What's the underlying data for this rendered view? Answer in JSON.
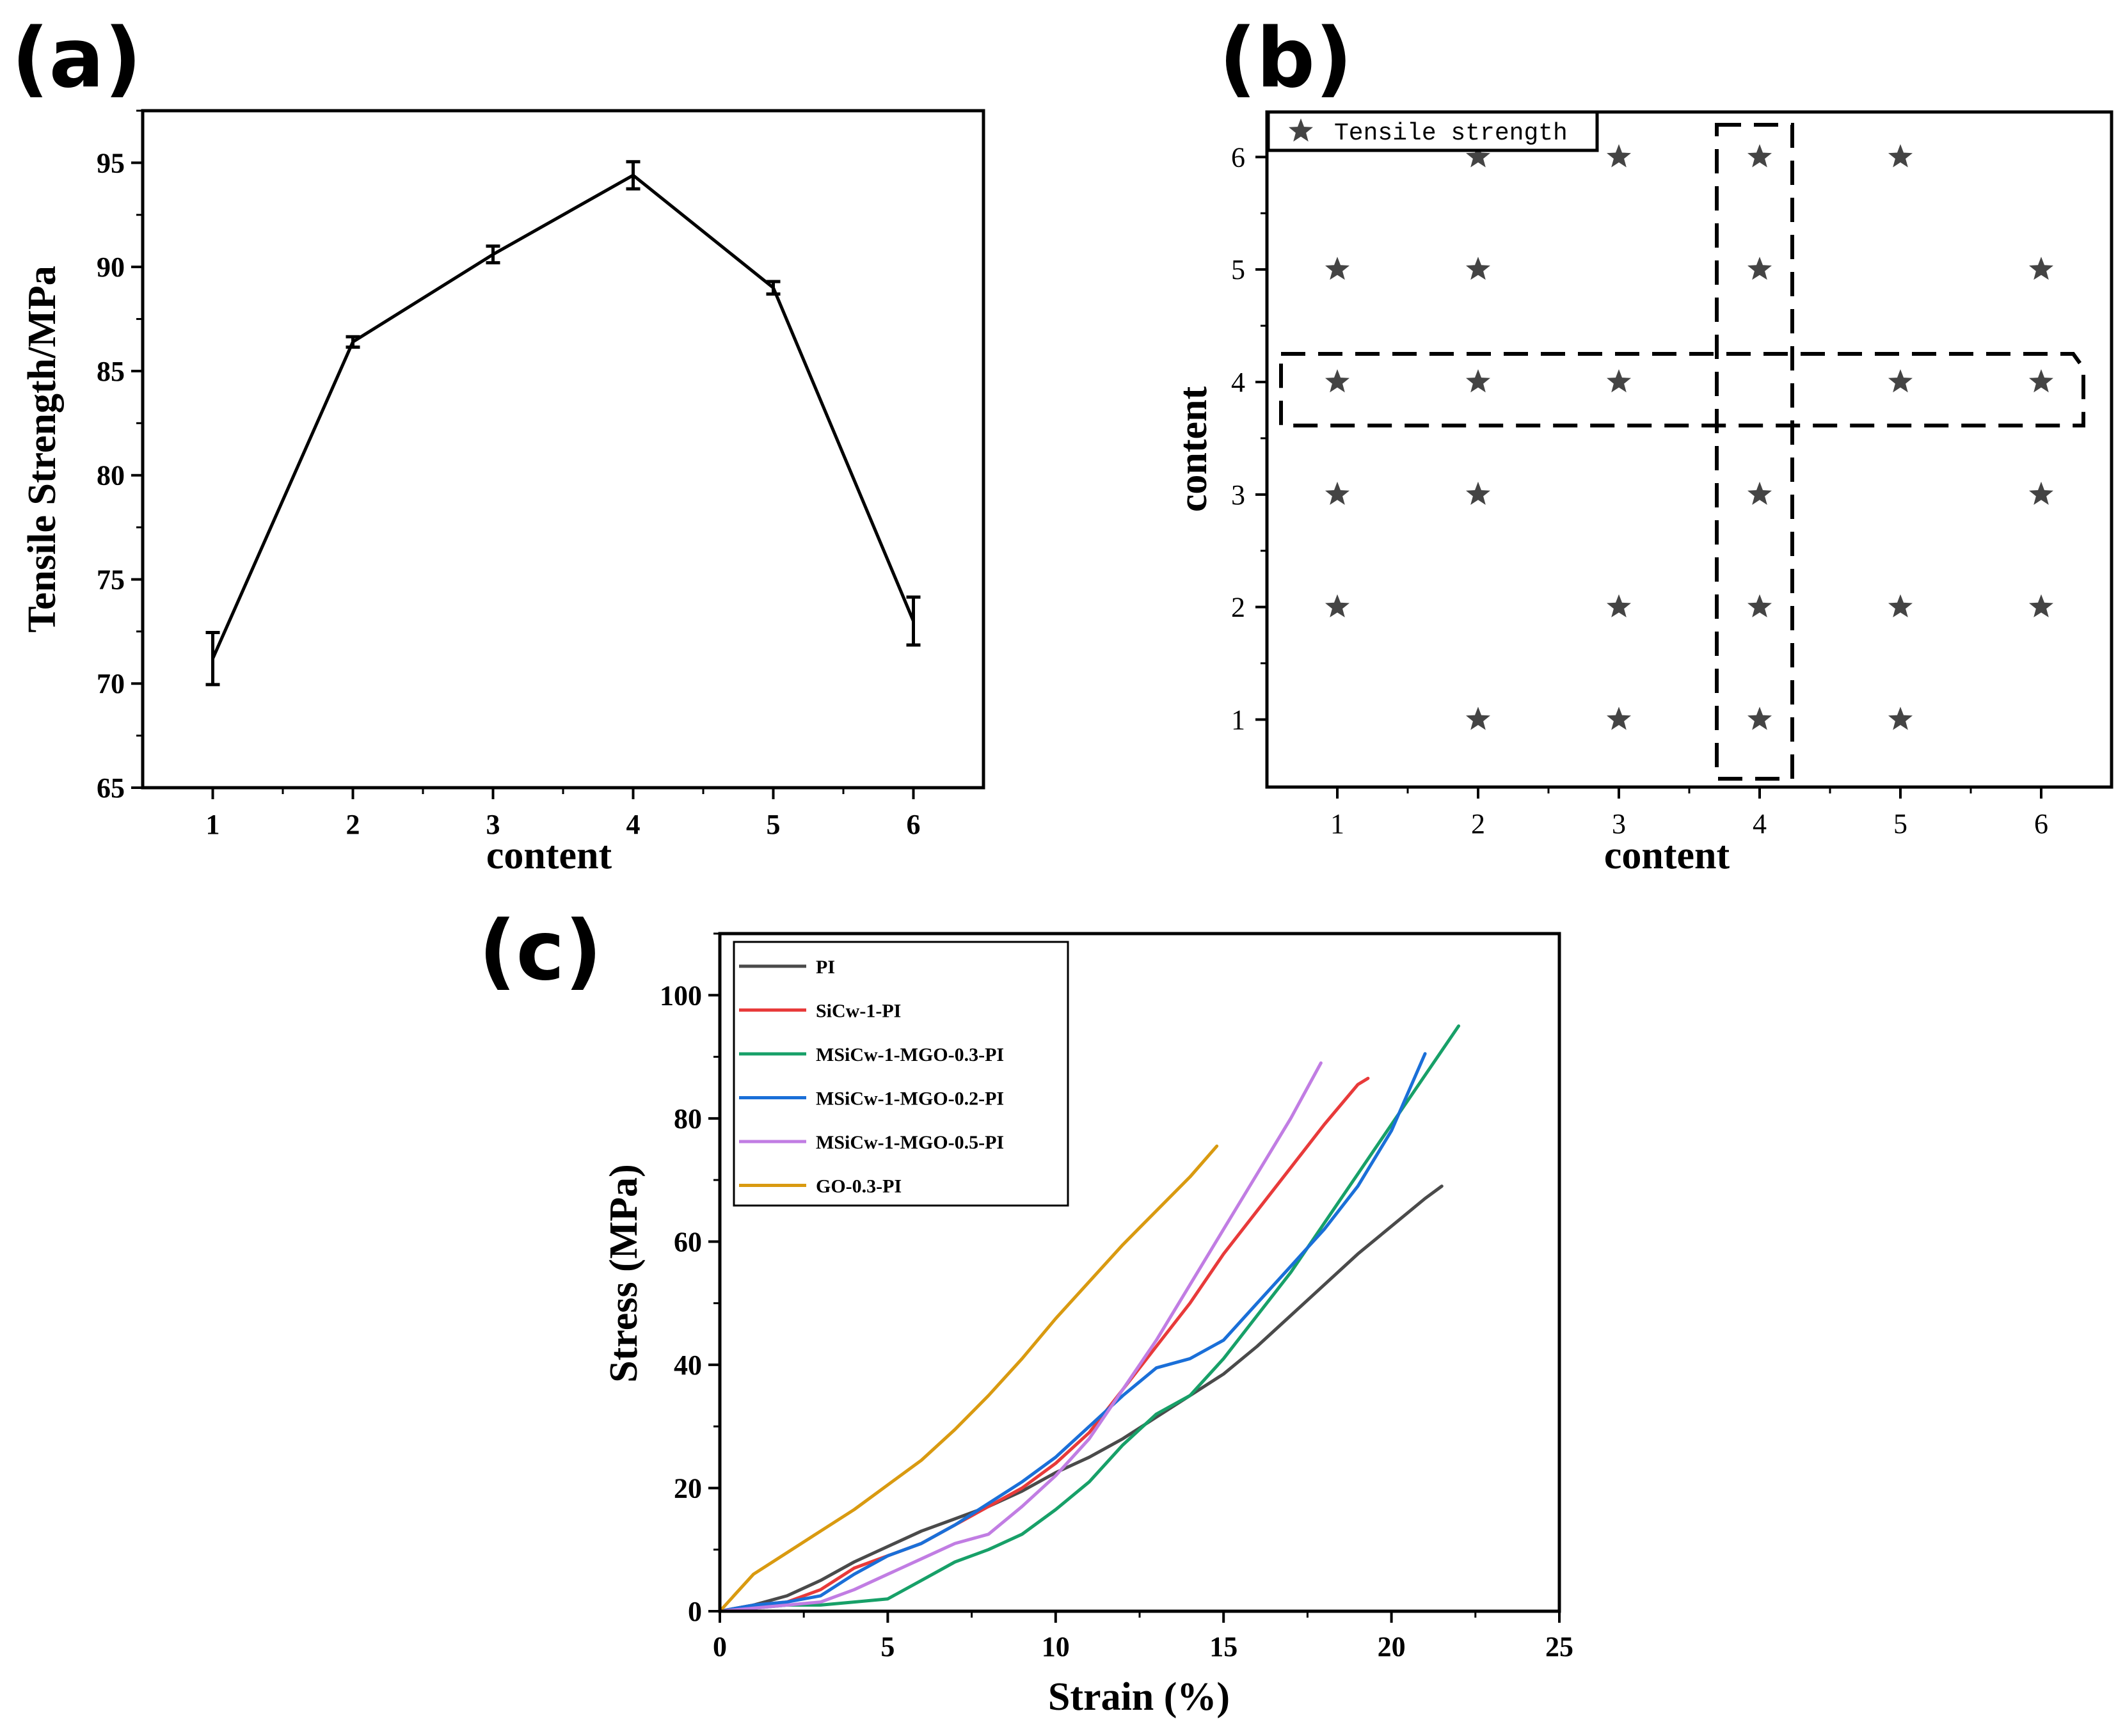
{
  "panels": {
    "a": {
      "label": "(a)",
      "chart_data": {
        "type": "line",
        "xlabel": "content",
        "ylabel": "Tensile Strength/MPa",
        "xticks": [
          "1",
          "2",
          "3",
          "4",
          "5",
          "6"
        ],
        "yticks": [
          "65",
          "70",
          "75",
          "80",
          "85",
          "90",
          "95"
        ],
        "xlim": [
          0.5,
          6.5
        ],
        "ylim": [
          65,
          97.5
        ],
        "x": [
          1,
          2,
          3,
          4,
          5,
          6
        ],
        "values": [
          71.2,
          86.4,
          90.6,
          94.4,
          89.0,
          73.0
        ],
        "errors": [
          1.25,
          0.25,
          0.4,
          0.65,
          0.3,
          1.15
        ]
      }
    },
    "b": {
      "label": "(b)",
      "chart_data": {
        "type": "scatter",
        "xlabel": "content",
        "ylabel": "content",
        "xticks": [
          "1",
          "2",
          "3",
          "4",
          "5",
          "6"
        ],
        "yticks": [
          "1",
          "2",
          "3",
          "4",
          "5",
          "6"
        ],
        "xlim": [
          0.5,
          6.5
        ],
        "ylim": [
          0.4,
          6.4
        ],
        "legend": "Tensile strength",
        "points": [
          [
            2,
            6
          ],
          [
            3,
            6
          ],
          [
            4,
            6
          ],
          [
            5,
            6
          ],
          [
            1,
            5
          ],
          [
            2,
            5
          ],
          [
            4,
            5
          ],
          [
            6,
            5
          ],
          [
            1,
            4
          ],
          [
            2,
            4
          ],
          [
            3,
            4
          ],
          [
            5,
            4
          ],
          [
            6,
            4
          ],
          [
            1,
            3
          ],
          [
            2,
            3
          ],
          [
            4,
            3
          ],
          [
            6,
            3
          ],
          [
            1,
            2
          ],
          [
            3,
            2
          ],
          [
            4,
            2
          ],
          [
            5,
            2
          ],
          [
            6,
            2
          ],
          [
            2,
            1
          ],
          [
            3,
            1
          ],
          [
            4,
            1
          ],
          [
            5,
            1
          ]
        ]
      }
    },
    "c": {
      "label": "(c)",
      "chart_data": {
        "type": "line",
        "xlabel": "Strain (%)",
        "ylabel": "Stress (MPa)",
        "xticks": [
          "0",
          "5",
          "10",
          "15",
          "20",
          "25"
        ],
        "yticks": [
          "0",
          "20",
          "40",
          "60",
          "80",
          "100"
        ],
        "xlim": [
          0,
          25
        ],
        "ylim": [
          0,
          110
        ],
        "series": [
          {
            "name": "PI",
            "color": "#4a4a4a",
            "x": [
              0,
              1,
              2,
              3,
              4,
              5,
              6,
              7,
              8,
              9,
              10,
              11,
              12,
              13,
              14,
              15,
              16,
              17,
              18,
              19,
              20,
              21,
              21.5
            ],
            "y": [
              0,
              1,
              2.5,
              5,
              8,
              10.5,
              13,
              15,
              17,
              19.5,
              22.5,
              25,
              28,
              31.5,
              35,
              38.5,
              43,
              48,
              53,
              58,
              62.5,
              67,
              69
            ]
          },
          {
            "name": "SiCw-1-PI",
            "color": "#e83a3a",
            "x": [
              0,
              1,
              2,
              3,
              4,
              5,
              6,
              7,
              8,
              9,
              10,
              11,
              12,
              13,
              14,
              15,
              16,
              17,
              18,
              19,
              19.3
            ],
            "y": [
              0,
              1,
              1.5,
              3.5,
              7,
              9,
              11,
              14,
              17,
              20,
              24,
              29,
              36,
              43,
              50,
              58,
              65,
              72,
              79,
              85.5,
              86.5
            ]
          },
          {
            "name": "MSiCw-1-MGO-0.3-PI",
            "color": "#17a068",
            "x": [
              0,
              1,
              2,
              3,
              4,
              5,
              6,
              7,
              8,
              9,
              10,
              11,
              12,
              13,
              14,
              15,
              16,
              17,
              18,
              19,
              20,
              21,
              22
            ],
            "y": [
              0,
              0.5,
              1,
              1,
              1.5,
              2,
              5,
              8,
              10,
              12.5,
              16.5,
              21,
              27,
              32,
              35,
              41,
              48,
              55,
              63,
              71,
              79,
              87,
              95
            ]
          },
          {
            "name": "MSiCw-1-MGO-0.2-PI",
            "color": "#1a6fd8",
            "x": [
              0,
              1,
              2,
              3,
              4,
              5,
              6,
              7,
              8,
              9,
              10,
              11,
              12,
              13,
              14,
              15,
              16,
              17,
              18,
              19,
              20,
              21
            ],
            "y": [
              0,
              1,
              1.5,
              2.5,
              6,
              9,
              11,
              14,
              17.5,
              21,
              25,
              30,
              35,
              39.5,
              41,
              44,
              50,
              56,
              62,
              69,
              78,
              90.5
            ]
          },
          {
            "name": "MSiCw-1-MGO-0.5-PI",
            "color": "#c17de3",
            "x": [
              0,
              1,
              2,
              3,
              4,
              5,
              6,
              7,
              8,
              9,
              10,
              11,
              12,
              13,
              14,
              15,
              16,
              17,
              17.9
            ],
            "y": [
              0,
              0.5,
              1,
              1.5,
              3.5,
              6,
              8.5,
              11,
              12.5,
              17,
              22,
              28,
              36,
              44,
              53,
              62,
              71,
              80,
              89
            ]
          },
          {
            "name": "GO-0.3-PI",
            "color": "#d99a10",
            "x": [
              0,
              0.5,
              1,
              2,
              3,
              4,
              5,
              6,
              7,
              8,
              9,
              10,
              11,
              12,
              13,
              14,
              14.8
            ],
            "y": [
              0,
              3,
              6,
              9.5,
              13,
              16.5,
              20.5,
              24.5,
              29.5,
              35,
              41,
              47.5,
              53.5,
              59.5,
              65,
              70.5,
              75.5
            ]
          }
        ]
      }
    }
  }
}
